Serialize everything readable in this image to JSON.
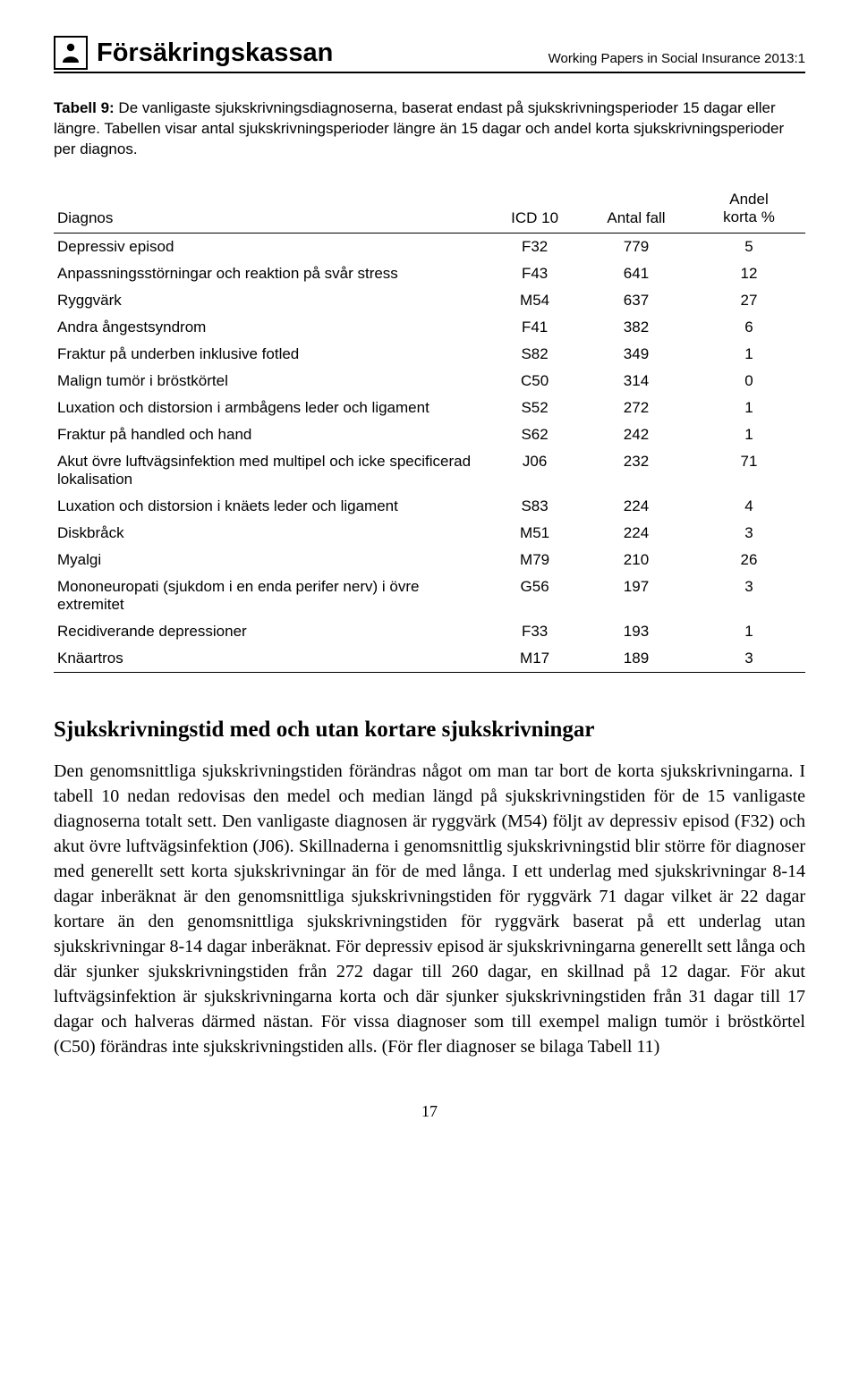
{
  "header": {
    "brand": "Försäkringskassan",
    "doc_ref": "Working Papers in Social Insurance 2013:1"
  },
  "caption": {
    "label": "Tabell 9:",
    "text": " De vanligaste sjukskrivningsdiagnoserna, baserat endast på sjukskrivningsperioder 15 dagar eller längre. Tabellen visar antal sjukskrivningsperioder längre än 15 dagar och andel korta sjukskrivningsperioder per diagnos."
  },
  "table": {
    "columns": [
      "Diagnos",
      "ICD 10",
      "Antal fall",
      "Andel korta %"
    ],
    "rows": [
      [
        "Depressiv episod",
        "F32",
        "779",
        "5"
      ],
      [
        "Anpassningsstörningar och reaktion på svår stress",
        "F43",
        "641",
        "12"
      ],
      [
        "Ryggvärk",
        "M54",
        "637",
        "27"
      ],
      [
        "Andra ångestsyndrom",
        "F41",
        "382",
        "6"
      ],
      [
        "Fraktur på underben inklusive fotled",
        "S82",
        "349",
        "1"
      ],
      [
        "Malign tumör i bröstkörtel",
        "C50",
        "314",
        "0"
      ],
      [
        "Luxation och distorsion i armbågens leder och ligament",
        "S52",
        "272",
        "1"
      ],
      [
        "Fraktur på handled och hand",
        "S62",
        "242",
        "1"
      ],
      [
        "Akut övre luftvägsinfektion med multipel och icke specificerad lokalisation",
        "J06",
        "232",
        "71"
      ],
      [
        "Luxation och distorsion i knäets leder och ligament",
        "S83",
        "224",
        "4"
      ],
      [
        "Diskbråck",
        "M51",
        "224",
        "3"
      ],
      [
        "Myalgi",
        "M79",
        "210",
        "26"
      ],
      [
        "Mononeuropati (sjukdom i en enda perifer nerv) i övre extremitet",
        "G56",
        "197",
        "3"
      ],
      [
        "Recidiverande depressioner",
        "F33",
        "193",
        "1"
      ],
      [
        "Knäartros",
        "M17",
        "189",
        "3"
      ]
    ]
  },
  "section_heading": "Sjukskrivningstid med och utan kortare sjukskrivningar",
  "body": "Den genomsnittliga sjukskrivningstiden förändras något om man tar bort de korta sjukskrivningarna. I tabell 10 nedan redovisas den medel och median längd på sjukskrivningstiden för de 15 vanligaste diagnoserna totalt sett. Den vanligaste diagnosen är ryggvärk (M54) följt av depressiv episod (F32) och akut övre luftvägsinfektion (J06). Skillnaderna i genomsnittlig sjukskrivningstid blir större för diagnoser med generellt sett korta sjukskrivningar än för de med långa. I ett underlag med sjukskrivningar 8-14 dagar inberäknat är den genomsnittliga sjukskrivningstiden för ryggvärk 71 dagar vilket är 22 dagar kortare än den genomsnittliga sjukskrivningstiden för ryggvärk baserat på ett underlag utan sjukskrivningar 8-14 dagar inberäknat. För depressiv episod är sjukskrivningarna generellt sett långa och där sjunker sjukskrivningstiden från 272 dagar till 260 dagar, en skillnad på 12 dagar. För akut luftvägsinfektion är sjukskrivningarna korta och där sjunker sjukskrivningstiden från 31 dagar till 17 dagar och halveras därmed nästan. För vissa diagnoser som till exempel malign tumör i bröstkörtel (C50) förändras inte sjukskrivningstiden alls. (För fler diagnoser se bilaga Tabell 11)",
  "page_number": "17",
  "style": {
    "background_color": "#ffffff",
    "text_color": "#000000",
    "rule_color": "#000000",
    "table_font_family": "Arial",
    "body_font_family": "Garamond",
    "table_fontsize": 17,
    "body_fontsize": 20,
    "heading_fontsize": 25
  }
}
